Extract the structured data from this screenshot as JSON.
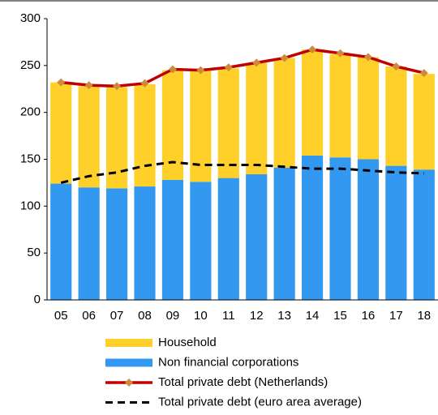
{
  "chart_data": {
    "type": "bar",
    "stacked": true,
    "categories": [
      "05",
      "06",
      "07",
      "08",
      "09",
      "10",
      "11",
      "12",
      "13",
      "14",
      "15",
      "16",
      "17",
      "18"
    ],
    "series": [
      {
        "name": "Household",
        "type": "bar",
        "color": "#ffd02a",
        "values": [
          108,
          108,
          108,
          109,
          117,
          119,
          117,
          119,
          117,
          113,
          110,
          109,
          106,
          102
        ]
      },
      {
        "name": "Non financial corporations",
        "type": "bar",
        "color": "#3399f0",
        "values": [
          124,
          120,
          119,
          121,
          128,
          126,
          130,
          134,
          141,
          154,
          152,
          150,
          143,
          139
        ]
      },
      {
        "name": "Total private debt (Netherlands)",
        "type": "line",
        "color": "#c00000",
        "marker_color": "#d08a3c",
        "values": [
          232,
          229,
          228,
          231,
          246,
          245,
          248,
          253,
          258,
          267,
          263,
          259,
          249,
          242
        ]
      },
      {
        "name": "Total private debt (euro area average)",
        "type": "line",
        "color": "#000000",
        "dashed": true,
        "values": [
          125,
          132,
          136,
          143,
          147,
          144,
          144,
          144,
          142,
          140,
          140,
          138,
          136,
          135
        ]
      }
    ],
    "ylim": [
      0,
      300
    ],
    "yticks": [
      0,
      50,
      100,
      150,
      200,
      250,
      300
    ],
    "grid": false
  }
}
